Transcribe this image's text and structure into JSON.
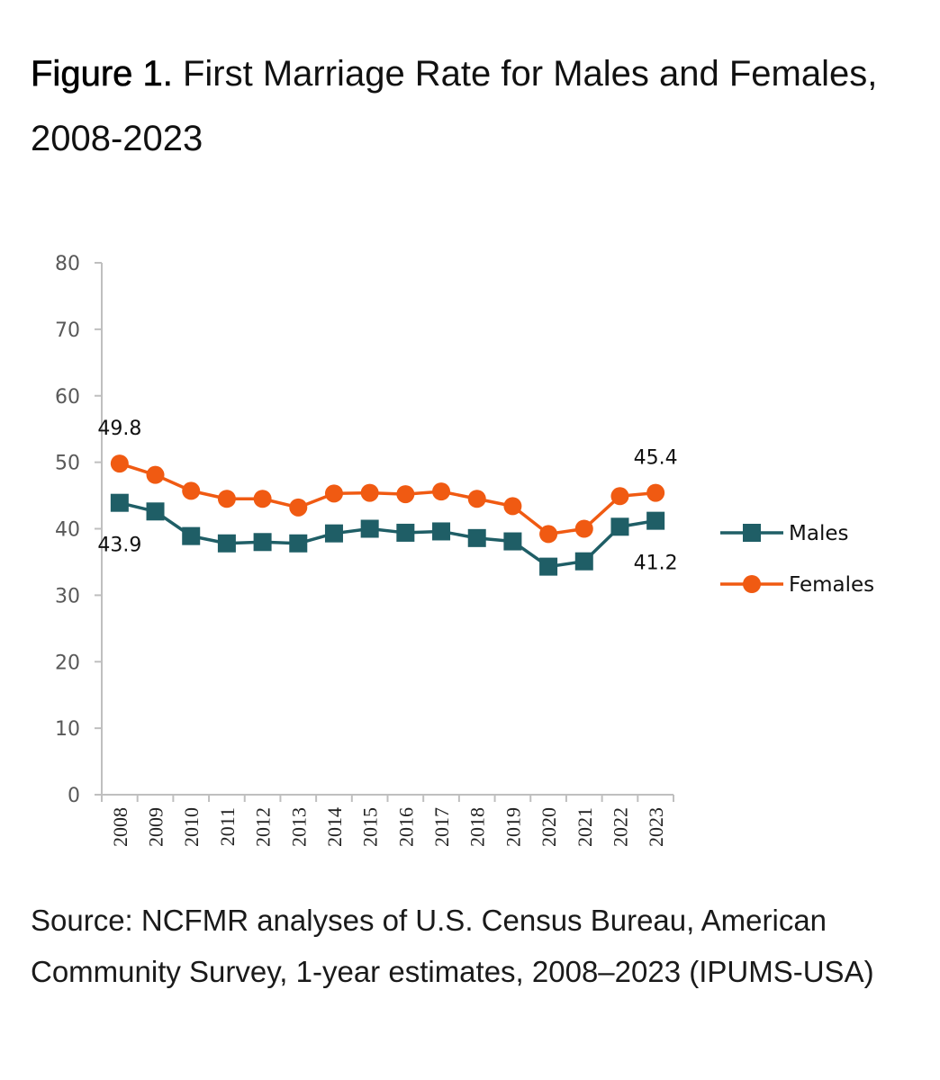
{
  "figure": {
    "label": "Figure 1.",
    "title_text": "First Marriage Rate for Males and Females, 2008-2023",
    "source": "Source: NCFMR analyses of U.S. Census Bureau, American Community Survey, 1-year estimates, 2008–2023 (IPUMS-USA)"
  },
  "chart_data": {
    "type": "line",
    "title": "First Marriage Rate for Males and Females, 2008-2023",
    "xlabel": "",
    "ylabel": "",
    "ylim": [
      0,
      80
    ],
    "yticks": [
      0,
      10,
      20,
      30,
      40,
      50,
      60,
      70,
      80
    ],
    "grid": false,
    "legend_position": "right",
    "categories": [
      "2008",
      "2009",
      "2010",
      "2011",
      "2012",
      "2013",
      "2014",
      "2015",
      "2016",
      "2017",
      "2018",
      "2019",
      "2020",
      "2021",
      "2022",
      "2023"
    ],
    "series": [
      {
        "name": "Males",
        "marker": "square",
        "color": "#1f5e66",
        "values": [
          43.9,
          42.6,
          38.9,
          37.8,
          38.0,
          37.8,
          39.3,
          40.0,
          39.4,
          39.6,
          38.6,
          38.1,
          34.3,
          35.1,
          40.3,
          41.2
        ]
      },
      {
        "name": "Females",
        "marker": "circle",
        "color": "#f05a12",
        "values": [
          49.8,
          48.1,
          45.7,
          44.5,
          44.5,
          43.2,
          45.3,
          45.4,
          45.2,
          45.6,
          44.5,
          43.4,
          39.2,
          40.0,
          44.9,
          45.4
        ]
      }
    ],
    "annotations": [
      {
        "series": "Females",
        "category": "2008",
        "text": "49.8",
        "position": "above"
      },
      {
        "series": "Males",
        "category": "2008",
        "text": "43.9",
        "position": "below"
      },
      {
        "series": "Females",
        "category": "2023",
        "text": "45.4",
        "position": "above"
      },
      {
        "series": "Males",
        "category": "2023",
        "text": "41.2",
        "position": "below"
      }
    ]
  }
}
